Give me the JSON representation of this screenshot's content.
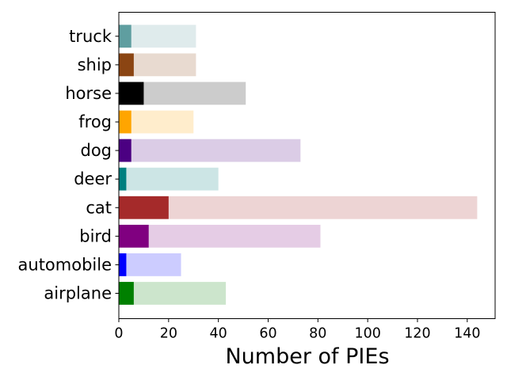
{
  "chart_data": {
    "type": "bar",
    "orientation": "horizontal",
    "stacked_overlay": true,
    "categories": [
      "airplane",
      "automobile",
      "bird",
      "cat",
      "deer",
      "dog",
      "frog",
      "horse",
      "ship",
      "truck"
    ],
    "series": [
      {
        "values": [
          6,
          3,
          12,
          20,
          3,
          5,
          5,
          10,
          6,
          5
        ],
        "colors": [
          "#008000",
          "#0000ff",
          "#800080",
          "#a52a2a",
          "#008080",
          "#4b0082",
          "#ffa500",
          "#000000",
          "#8b4513",
          "#5f9ea0"
        ]
      },
      {
        "values": [
          43,
          25,
          81,
          144,
          40,
          73,
          30,
          51,
          31,
          31
        ],
        "colors": [
          "#cce5cc",
          "#ccccff",
          "#e5cce5",
          "#edd4d4",
          "#cce5e5",
          "#dbcce6",
          "#ffedcc",
          "#cccccc",
          "#e8dad0",
          "#dfebec"
        ]
      }
    ],
    "xlabel": "Number of PIEs",
    "ylabel": "",
    "title": "",
    "xlim": [
      0,
      151.2
    ],
    "xticks": [
      0,
      20,
      40,
      60,
      80,
      100,
      120,
      140
    ],
    "grid": false
  }
}
